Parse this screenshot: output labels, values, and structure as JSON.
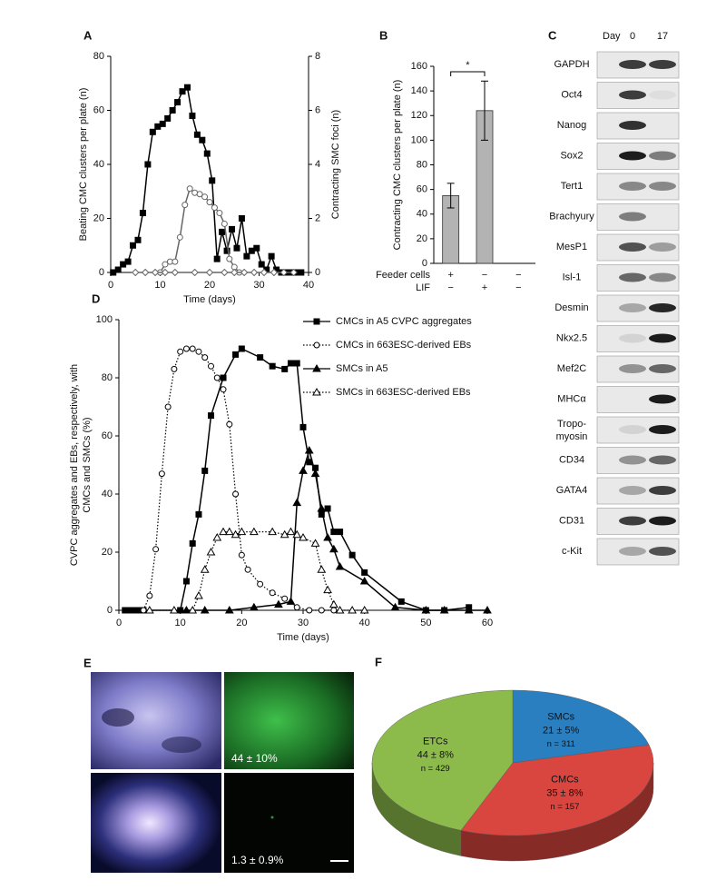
{
  "chart_data": [
    {
      "panel": "A",
      "type": "line",
      "xlabel": "Time (days)",
      "ylabel": "Beating CMC clusters per plate (n)",
      "y2label": "Contracting SMC foci (n)",
      "xlim": [
        0,
        40
      ],
      "xticks": [
        0,
        10,
        20,
        30,
        40
      ],
      "ylim": [
        0,
        80
      ],
      "yticks": [
        0,
        20,
        40,
        60,
        80
      ],
      "y2lim": [
        0,
        8
      ],
      "y2ticks": [
        0,
        2,
        4,
        6,
        8
      ],
      "series": [
        {
          "marker": "square",
          "filled": true,
          "linestyle": "solid",
          "color": "#000000",
          "x": [
            0.5,
            1.5,
            2.5,
            3.5,
            4.5,
            5.5,
            6.5,
            7.5,
            8.5,
            9.5,
            10.5,
            11.5,
            12.5,
            13.5,
            14.5,
            15.5,
            16.5,
            17.5,
            18.5,
            19.5,
            20.5,
            21.5,
            22.5,
            23.5,
            24.5,
            25.5,
            26.5,
            27.5,
            28.5,
            29.5,
            30.5,
            31.5,
            32.5,
            33.5,
            34.5,
            35.5,
            36.5,
            37.5,
            38.5
          ],
          "values": [
            0,
            1,
            3,
            4,
            10,
            12,
            22,
            40,
            52,
            54,
            55,
            57,
            60,
            63,
            67,
            68.5,
            58,
            51,
            49,
            44,
            34,
            5,
            15,
            8,
            16,
            9,
            20,
            6,
            8,
            9,
            3,
            1,
            6,
            1,
            0,
            0,
            0,
            0,
            0
          ]
        },
        {
          "marker": "circle",
          "filled": false,
          "linestyle": "solid",
          "color": "#666666",
          "axis": "y2",
          "x": [
            10,
            11,
            12,
            13,
            14,
            15,
            16,
            17,
            18,
            19,
            20,
            21,
            22,
            23,
            24,
            25,
            26
          ],
          "values": [
            0,
            0.3,
            0.4,
            0.4,
            1.3,
            2.5,
            3.1,
            2.95,
            2.9,
            2.8,
            2.6,
            2.4,
            2.2,
            1.8,
            0.5,
            0.2,
            0
          ]
        },
        {
          "marker": "diamond",
          "filled": false,
          "linestyle": "solid",
          "color": "#666666",
          "x": [
            5,
            7,
            9,
            11,
            13,
            17,
            20,
            23,
            25,
            27,
            29,
            31,
            33,
            35,
            37
          ],
          "values": [
            0,
            0,
            0,
            0,
            0,
            0,
            0,
            0,
            0,
            0,
            0,
            0,
            0,
            0,
            0
          ]
        }
      ]
    },
    {
      "panel": "B",
      "type": "bar",
      "ylabel": "Contracting CMC clusters per plate (n)",
      "ylim": [
        0,
        160
      ],
      "yticks": [
        0,
        20,
        40,
        60,
        80,
        100,
        120,
        140,
        160
      ],
      "values": [
        55,
        124,
        null
      ],
      "errors": [
        10,
        24,
        null
      ],
      "color": "#b3b3b3",
      "annotation": "*",
      "table": [
        {
          "label": "Feeder cells",
          "cells": [
            "+",
            "−",
            "−"
          ]
        },
        {
          "label": "LIF",
          "cells": [
            "−",
            "+",
            "−"
          ]
        }
      ]
    },
    {
      "panel": "D",
      "type": "line",
      "xlabel": "Time (days)",
      "ylabel": [
        "CVPC aggregates and EBs, respectively, with",
        "CMCs and SMCs (%)"
      ],
      "xlim": [
        0,
        60
      ],
      "xticks": [
        0,
        10,
        20,
        30,
        40,
        50,
        60
      ],
      "ylim": [
        0,
        100
      ],
      "yticks": [
        0,
        20,
        40,
        60,
        80,
        100
      ],
      "legend": "upper right",
      "series": [
        {
          "name": "CMCs in A5 CVPC aggregates",
          "marker": "square",
          "filled": true,
          "linestyle": "solid",
          "color": "#000000",
          "x": [
            1,
            2,
            3,
            4,
            10,
            11,
            12,
            13,
            14,
            15,
            17,
            19,
            20,
            23,
            25,
            27,
            28,
            29,
            30,
            31,
            32,
            33,
            34,
            35,
            36,
            38,
            40,
            46,
            50,
            53,
            57
          ],
          "values": [
            0,
            0,
            0,
            0,
            0,
            10,
            23,
            33,
            48,
            67,
            80,
            88,
            90,
            87,
            84,
            83,
            85,
            85,
            63,
            51,
            49,
            33,
            35,
            27,
            27,
            19,
            13,
            3,
            0,
            0,
            1
          ]
        },
        {
          "name": "CMCs in 663ESC-derived EBs",
          "marker": "circle",
          "filled": false,
          "linestyle": "dotted",
          "color": "#000000",
          "x": [
            4,
            5,
            6,
            7,
            8,
            9,
            10,
            11,
            12,
            13,
            14,
            15,
            16,
            17,
            18,
            19,
            20,
            21,
            23,
            25,
            27,
            29,
            31,
            33,
            35
          ],
          "values": [
            0,
            5,
            21,
            47,
            70,
            83,
            89,
            90,
            90,
            89,
            87,
            84,
            80,
            76,
            64,
            40,
            19,
            14,
            9,
            6,
            4,
            1,
            0,
            0,
            0
          ]
        },
        {
          "name": "SMCs in A5",
          "marker": "triangle",
          "filled": true,
          "linestyle": "solid",
          "color": "#000000",
          "x": [
            11,
            14,
            18,
            22,
            26,
            28,
            29,
            30,
            31,
            32,
            33,
            34,
            35,
            36,
            40,
            45,
            50,
            53,
            57,
            60
          ],
          "values": [
            0,
            0,
            0,
            1,
            2,
            3,
            37,
            48,
            55,
            47,
            35,
            25,
            21,
            15,
            10,
            1,
            0,
            0,
            0,
            0
          ]
        },
        {
          "name": "SMCs in 663ESC-derived EBs",
          "marker": "triangle",
          "filled": false,
          "linestyle": "dotted",
          "color": "#000000",
          "x": [
            5,
            9,
            12,
            13,
            14,
            15,
            16,
            17,
            18,
            19,
            20,
            22,
            25,
            27,
            28,
            29,
            30,
            32,
            33,
            34,
            35,
            36,
            38,
            40
          ],
          "values": [
            0,
            0,
            0,
            5,
            14,
            20,
            25,
            27,
            27,
            26,
            27,
            27,
            27,
            26,
            27,
            26,
            25,
            23,
            14,
            7,
            2,
            0,
            0,
            0
          ]
        }
      ]
    },
    {
      "panel": "F",
      "type": "pie",
      "categories": [
        "SMCs",
        "CMCs",
        "ETCs"
      ],
      "values": [
        21,
        35,
        44
      ],
      "value_labels": [
        "21 ± 5%",
        "35 ± 8%",
        "44 ± 8%"
      ],
      "counts": [
        "n = 311",
        "n = 157",
        "n = 429"
      ],
      "colors": [
        "#2a7fc0",
        "#d9453f",
        "#8cbb4c"
      ]
    }
  ],
  "blot": {
    "panel": "C",
    "header": "Day",
    "columns": [
      "0",
      "17"
    ],
    "rows": [
      "GAPDH",
      "Oct4",
      "Nanog",
      "Sox2",
      "Tert1",
      "Brachyury",
      "MesP1",
      "Isl-1",
      "Desmin",
      "Nkx2.5",
      "Mef2C",
      "MHCα",
      [
        "Tropo-",
        "myosin"
      ],
      "CD34",
      "GATA4",
      "CD31",
      "c-Kit"
    ]
  },
  "images": {
    "panel": "E",
    "labels": [
      "44 ± 10%",
      "1.3 ± 0.9%"
    ]
  }
}
